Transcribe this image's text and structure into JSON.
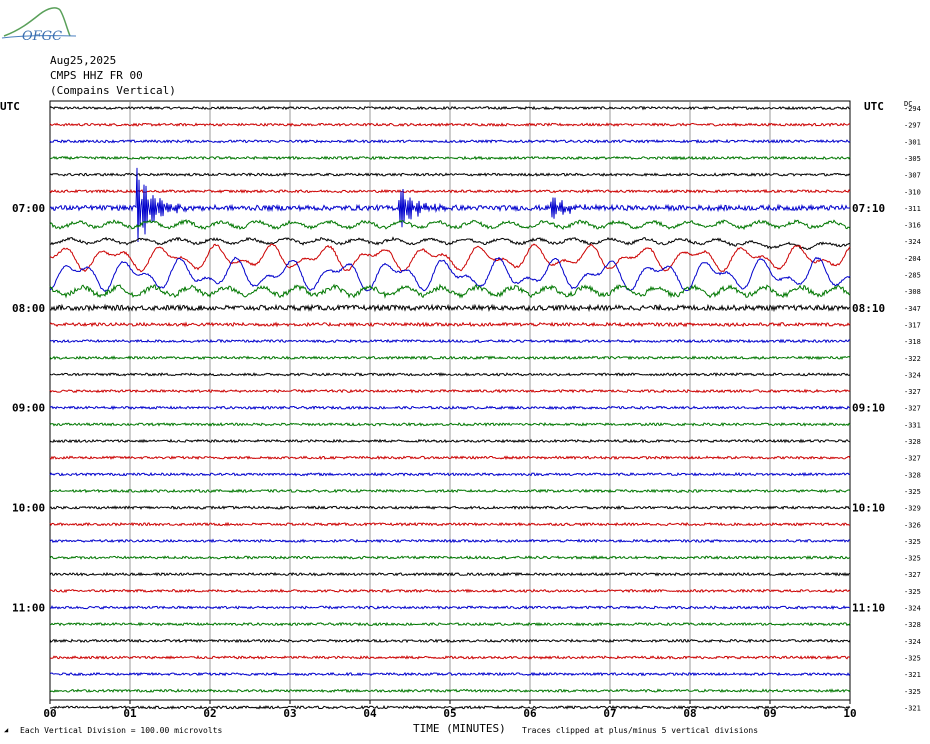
{
  "header": {
    "date": "Aug25,2025",
    "station": "CMPS HHZ FR 00",
    "location": "(Compains Vertical)",
    "logo_text": "OFGC"
  },
  "footer": {
    "scale_note": "Each Vertical Division =  100.00 microvolts",
    "clip_note": "Traces clipped at plus/minus 5 vertical divisions"
  },
  "chart_data": {
    "type": "line",
    "title": "",
    "xlabel": "TIME (MINUTES)",
    "ylabel": "",
    "left_axis_label": "UTC",
    "right_axis_label": "UTC",
    "dc_label": "DC",
    "xlim": [
      0,
      10
    ],
    "x_ticks": [
      "00",
      "01",
      "02",
      "03",
      "04",
      "05",
      "06",
      "07",
      "08",
      "09",
      "10"
    ],
    "grid": true,
    "trace_colors": [
      "#000000",
      "#cc0000",
      "#0000cc",
      "#007700"
    ],
    "left_hour_labels": [
      {
        "row": 6,
        "label": "07:00"
      },
      {
        "row": 12,
        "label": "08:00"
      },
      {
        "row": 18,
        "label": "09:00"
      },
      {
        "row": 24,
        "label": "10:00"
      },
      {
        "row": 30,
        "label": "11:00"
      }
    ],
    "right_hour_labels": [
      {
        "row": 6,
        "label": "07:10"
      },
      {
        "row": 12,
        "label": "08:10"
      },
      {
        "row": 18,
        "label": "09:10"
      },
      {
        "row": 24,
        "label": "10:10"
      },
      {
        "row": 30,
        "label": "11:10"
      }
    ],
    "dc_offsets": [
      "-294",
      "-297",
      "-301",
      "-305",
      "-307",
      "-310",
      "-311",
      "-316",
      "-324",
      "-204",
      "-285",
      "-308",
      "-347",
      "-317",
      "-318",
      "-322",
      "-324",
      "-327",
      "-327",
      "-331",
      "-328",
      "-327",
      "-328",
      "-325",
      "-329",
      "-326",
      "-325",
      "-325",
      "-327",
      "-325",
      "-324",
      "-328",
      "-324",
      "-325",
      "-321",
      "-325",
      "-321"
    ],
    "trace_amplitude": [
      0.15,
      0.15,
      0.15,
      0.15,
      0.15,
      0.15,
      0.3,
      0.5,
      0.4,
      1.6,
      2.0,
      0.7,
      0.3,
      0.2,
      0.15,
      0.15,
      0.15,
      0.15,
      0.15,
      0.15,
      0.15,
      0.15,
      0.15,
      0.15,
      0.15,
      0.15,
      0.15,
      0.15,
      0.15,
      0.15,
      0.15,
      0.15,
      0.15,
      0.15,
      0.15,
      0.15,
      0.15
    ],
    "events": [
      {
        "row": 6,
        "minute": 1.08,
        "peak_divisions": 5
      },
      {
        "row": 6,
        "minute": 4.35,
        "peak_divisions": 3
      },
      {
        "row": 6,
        "minute": 6.25,
        "peak_divisions": 1.5
      }
    ]
  }
}
